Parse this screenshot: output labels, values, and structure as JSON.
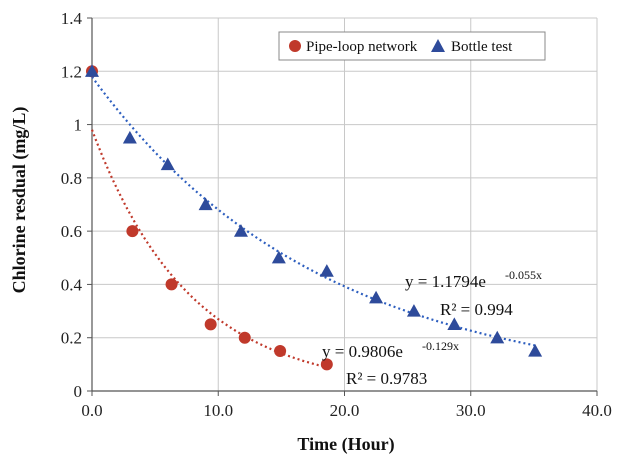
{
  "chart_data": {
    "type": "scatter",
    "xlabel": "Time (Hour)",
    "ylabel": "Chlorine resdual (mg/L)",
    "xlim": [
      0,
      40
    ],
    "ylim": [
      0,
      1.4
    ],
    "x_ticks": [
      "0.0",
      "10.0",
      "20.0",
      "30.0",
      "40.0"
    ],
    "y_ticks": [
      "0",
      "0.2",
      "0.4",
      "0.6",
      "0.8",
      "1",
      "1.2",
      "1.4"
    ],
    "grid": true,
    "legend_position": "top-right",
    "series": [
      {
        "name": "Pipe-loop network",
        "marker": "circle",
        "color": "#c0392b",
        "trend_color": "#c0392b",
        "x": [
          0,
          3.2,
          6.3,
          9.4,
          12.1,
          14.9,
          18.6
        ],
        "y": [
          1.2,
          0.6,
          0.4,
          0.25,
          0.2,
          0.15,
          0.1
        ],
        "trendline": {
          "type": "exponential",
          "a": 0.9806,
          "b": -0.129,
          "x_range": [
            0,
            18.6
          ]
        },
        "equation": {
          "base": "y = 0.9806e",
          "exp": "-0.129x",
          "r2": "R² = 0.9783"
        }
      },
      {
        "name": "Bottle test",
        "marker": "triangle",
        "color": "#2e4b9b",
        "trend_color": "#2e5fbf",
        "x": [
          0,
          3.0,
          6.0,
          9.0,
          11.8,
          14.8,
          18.6,
          22.5,
          25.5,
          28.7,
          32.1,
          35.1
        ],
        "y": [
          1.2,
          0.95,
          0.85,
          0.7,
          0.6,
          0.5,
          0.45,
          0.35,
          0.3,
          0.25,
          0.2,
          0.15
        ],
        "trendline": {
          "type": "exponential",
          "a": 1.1794,
          "b": -0.055,
          "x_range": [
            0,
            35.1
          ]
        },
        "equation": {
          "base": "y = 1.1794e",
          "exp": "-0.055x",
          "r2": "R² = 0.994"
        }
      }
    ]
  }
}
